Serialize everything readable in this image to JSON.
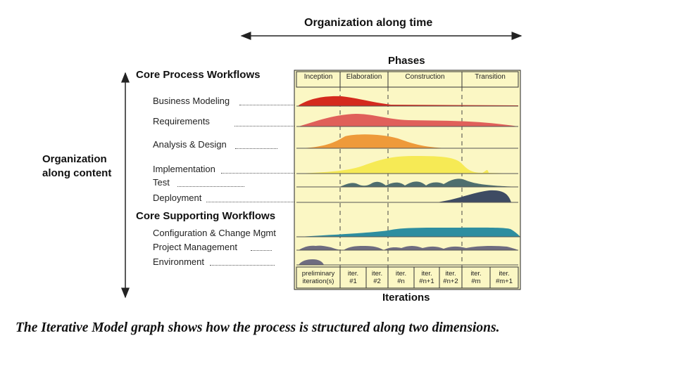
{
  "header": {
    "time_axis_label": "Organization along time",
    "content_axis_label_line1": "Organization",
    "content_axis_label_line2": "along content",
    "phases_label": "Phases",
    "iterations_label": "Iterations"
  },
  "phases": [
    "Inception",
    "Elaboration",
    "Construction",
    "Transition"
  ],
  "groups": {
    "core_process": "Core Process Workflows",
    "core_supporting": "Core Supporting Workflows"
  },
  "workflows": [
    {
      "name": "Business Modeling",
      "color": "#d42a1e"
    },
    {
      "name": "Requirements",
      "color": "#e0605a"
    },
    {
      "name": "Analysis & Design",
      "color": "#ee9a3a"
    },
    {
      "name": "Implementation",
      "color": "#f6ea55"
    },
    {
      "name": "Test",
      "color": "#4f6e6e"
    },
    {
      "name": "Deployment",
      "color": "#3e4b63"
    },
    {
      "name": "Configuration & Change Mgmt",
      "color": "#2e8ea0"
    },
    {
      "name": "Project Management",
      "color": "#6e6c80"
    },
    {
      "name": "Environment",
      "color": "#6e6c80"
    }
  ],
  "iterations": [
    {
      "line1": "preliminary",
      "line2": "iteration(s)"
    },
    {
      "line1": "iter.",
      "line2": "#1"
    },
    {
      "line1": "iter.",
      "line2": "#2"
    },
    {
      "line1": "iter.",
      "line2": "#n"
    },
    {
      "line1": "iter.",
      "line2": "#n+1"
    },
    {
      "line1": "iter.",
      "line2": "#n+2"
    },
    {
      "line1": "iter.",
      "line2": "#m"
    },
    {
      "line1": "iter.",
      "line2": "#m+1"
    }
  ],
  "colors": {
    "panel_bg": "#fbf7c4",
    "axis": "#222222"
  },
  "caption": "The Iterative Model graph shows how the process is structured along two dimensions."
}
